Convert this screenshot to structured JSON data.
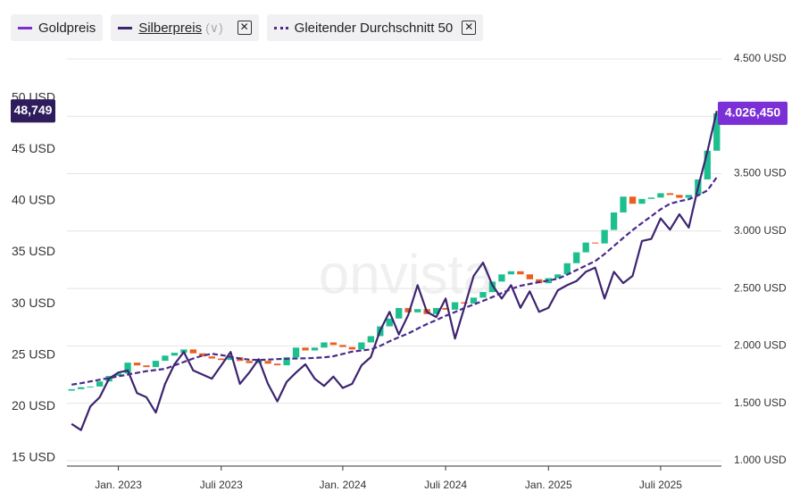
{
  "chart_data": {
    "type": "combo",
    "watermark": "onvista",
    "categories": [
      null,
      null,
      null,
      null,
      null,
      "Jan. 2023",
      null,
      null,
      null,
      null,
      null,
      null,
      null,
      null,
      null,
      null,
      "Juli 2023",
      null,
      null,
      null,
      null,
      null,
      null,
      null,
      null,
      null,
      null,
      null,
      null,
      "Jan. 2024",
      null,
      null,
      null,
      null,
      null,
      null,
      null,
      null,
      null,
      null,
      "Juli 2024",
      null,
      null,
      null,
      null,
      null,
      null,
      null,
      null,
      null,
      null,
      "Jan. 2025",
      null,
      null,
      null,
      null,
      null,
      null,
      null,
      null,
      null,
      null,
      null,
      "Juli 2025",
      null,
      null,
      null,
      null,
      null,
      null
    ],
    "series": [
      {
        "name": "Goldpreis",
        "type": "candlestick",
        "axis": "y2",
        "color": "#7b2fd6",
        "up_color": "#1dbf8f",
        "down_color": "#ea5f1d",
        "open": [
          1610,
          1623,
          1640,
          1646,
          1690,
          1738,
          1760,
          1854,
          1830,
          1815,
          1870,
          1915,
          1940,
          1969,
          1935,
          1908,
          1890,
          1877,
          1900,
          1869,
          1850,
          1869,
          1845,
          1831,
          1900,
          1985,
          1960,
          1985,
          2030,
          2008,
          1990,
          1969,
          2030,
          2085,
          2170,
          2238,
          2330,
          2292,
          2320,
          2277,
          2330,
          2315,
          2380,
          2369,
          2420,
          2469,
          2560,
          2623,
          2650,
          2623,
          2580,
          2546,
          2590,
          2623,
          2720,
          2815,
          2900,
          2892,
          3010,
          3162,
          3300,
          3238,
          3280,
          3292,
          3330,
          3315,
          3290,
          3315,
          3450,
          3700
        ],
        "close": [
          1623,
          1640,
          1646,
          1690,
          1738,
          1760,
          1854,
          1830,
          1815,
          1870,
          1915,
          1940,
          1969,
          1935,
          1908,
          1890,
          1877,
          1900,
          1869,
          1850,
          1869,
          1845,
          1831,
          1900,
          1985,
          1960,
          1985,
          2030,
          2008,
          1990,
          1969,
          2030,
          2085,
          2170,
          2238,
          2330,
          2292,
          2320,
          2277,
          2330,
          2315,
          2380,
          2369,
          2420,
          2469,
          2560,
          2623,
          2650,
          2623,
          2580,
          2546,
          2590,
          2623,
          2720,
          2815,
          2900,
          2892,
          3010,
          3162,
          3300,
          3238,
          3280,
          3292,
          3330,
          3315,
          3290,
          3315,
          3450,
          3700,
          4026
        ],
        "current_label": {
          "value": 4026.45,
          "label": "4.026,450"
        }
      },
      {
        "name": "Silberpreis",
        "type": "line",
        "axis": "y",
        "color": "#3d2470",
        "values": [
          18.3,
          17.7,
          20.0,
          20.9,
          22.7,
          23.3,
          23.5,
          21.3,
          20.9,
          19.4,
          22.2,
          24.1,
          25.3,
          23.5,
          23.1,
          22.7,
          24.0,
          25.3,
          22.2,
          23.3,
          24.6,
          22.2,
          20.5,
          22.4,
          23.3,
          24.1,
          22.7,
          22.0,
          22.9,
          21.8,
          22.2,
          24.0,
          24.8,
          27.4,
          29.2,
          27.0,
          28.9,
          31.8,
          29.2,
          28.7,
          30.5,
          26.6,
          29.6,
          32.7,
          34.0,
          31.8,
          30.5,
          31.8,
          29.6,
          31.2,
          29.2,
          29.6,
          31.3,
          31.8,
          32.2,
          33.1,
          33.5,
          30.5,
          33.1,
          32.0,
          32.7,
          36.1,
          36.3,
          38.3,
          37.2,
          38.7,
          37.4,
          41.3,
          44.8,
          48.749
        ],
        "current_label": {
          "value": 48.749,
          "label": "48,749"
        }
      },
      {
        "name": "Gleitender Durchschnitt 50",
        "type": "line",
        "axis": "y2",
        "dashed": true,
        "color": "#4a2a8a",
        "values": [
          1662,
          1675,
          1690,
          1705,
          1720,
          1735,
          1750,
          1765,
          1780,
          1790,
          1800,
          1830,
          1860,
          1890,
          1915,
          1931,
          1920,
          1905,
          1890,
          1880,
          1877,
          1880,
          1885,
          1888,
          1890,
          1892,
          1895,
          1900,
          1910,
          1930,
          1950,
          1960,
          1969,
          2000,
          2040,
          2075,
          2108,
          2150,
          2190,
          2225,
          2262,
          2295,
          2330,
          2360,
          2392,
          2425,
          2460,
          2495,
          2523,
          2540,
          2555,
          2570,
          2585,
          2620,
          2660,
          2700,
          2738,
          2800,
          2870,
          2940,
          3008,
          3070,
          3130,
          3190,
          3238,
          3260,
          3277,
          3310,
          3354,
          3469
        ]
      }
    ],
    "ylim": [
      14.2,
      55.2
    ],
    "yticks": [
      {
        "value": 15,
        "label": "15 USD"
      },
      {
        "value": 20,
        "label": "20 USD"
      },
      {
        "value": 25,
        "label": "25 USD"
      },
      {
        "value": 30,
        "label": "30 USD"
      },
      {
        "value": 35,
        "label": "35 USD"
      },
      {
        "value": 40,
        "label": "40 USD"
      },
      {
        "value": 45,
        "label": "45 USD"
      },
      {
        "value": 50,
        "label": "50 USD"
      }
    ],
    "y2lim": [
      953,
      4624
    ],
    "y2ticks": [
      {
        "value": 1000,
        "label": "1.000 USD"
      },
      {
        "value": 1500,
        "label": "1.500 USD"
      },
      {
        "value": 2000,
        "label": "2.000 USD"
      },
      {
        "value": 2500,
        "label": "2.500 USD"
      },
      {
        "value": 3000,
        "label": "3.000 USD"
      },
      {
        "value": 3500,
        "label": "3.500 USD"
      },
      {
        "value": 4000,
        "label": "4.000 USD"
      },
      {
        "value": 4500,
        "label": "4.500 USD"
      }
    ],
    "grid": true
  }
}
